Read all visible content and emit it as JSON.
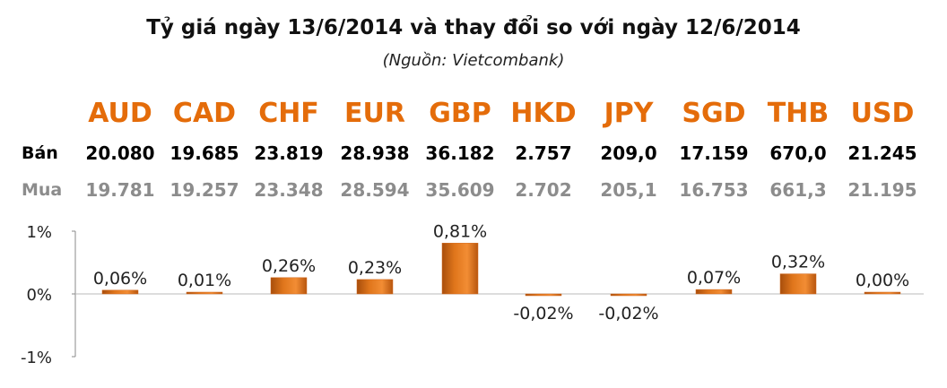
{
  "title": "Tỷ giá ngày 13/6/2014 và thay đổi so với ngày 12/6/2014",
  "subtitle": "(Nguồn: Vietcombank)",
  "row_labels": {
    "sell": "Bán",
    "buy": "Mua"
  },
  "accent_color": "#e46c0a",
  "bar_color": "#d2691e",
  "currencies": [
    {
      "code": "AUD",
      "sell": "20.080",
      "buy": "19.781",
      "change_label": "0,06%"
    },
    {
      "code": "CAD",
      "sell": "19.685",
      "buy": "19.257",
      "change_label": "0,01%"
    },
    {
      "code": "CHF",
      "sell": "23.819",
      "buy": "23.348",
      "change_label": "0,26%"
    },
    {
      "code": "EUR",
      "sell": "28.938",
      "buy": "28.594",
      "change_label": "0,23%"
    },
    {
      "code": "GBP",
      "sell": "36.182",
      "buy": "35.609",
      "change_label": "0,81%"
    },
    {
      "code": "HKD",
      "sell": "2.757",
      "buy": "2.702",
      "change_label": "-0,02%"
    },
    {
      "code": "JPY",
      "sell": "209,0",
      "buy": "205,1",
      "change_label": "-0,02%"
    },
    {
      "code": "SGD",
      "sell": "17.159",
      "buy": "16.753",
      "change_label": "0,07%"
    },
    {
      "code": "THB",
      "sell": "670,0",
      "buy": "661,3",
      "change_label": "0,32%"
    },
    {
      "code": "USD",
      "sell": "21.245",
      "buy": "21.195",
      "change_label": "0,00%"
    }
  ],
  "chart_data": {
    "type": "bar",
    "categories": [
      "AUD",
      "CAD",
      "CHF",
      "EUR",
      "GBP",
      "HKD",
      "JPY",
      "SGD",
      "THB",
      "USD"
    ],
    "values": [
      0.06,
      0.01,
      0.26,
      0.23,
      0.81,
      -0.02,
      -0.02,
      0.07,
      0.32,
      0.0
    ],
    "unit": "%",
    "ylim": [
      -1,
      1
    ],
    "yticks": [
      "1%",
      "0%",
      "-1%"
    ],
    "grid": false,
    "legend": "none"
  }
}
